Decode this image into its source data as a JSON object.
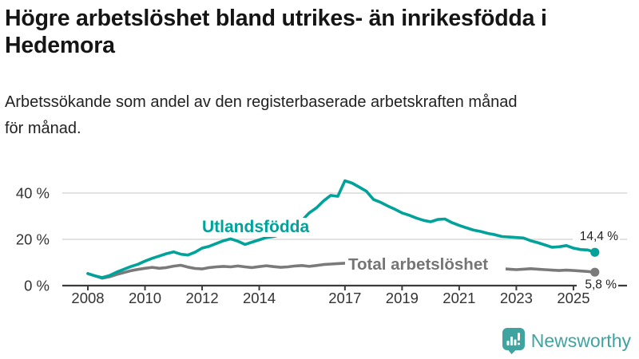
{
  "header": {
    "title": "Högre arbetslöshet bland utrikes- än inrikesfödda i\nHedemora",
    "subtitle": "Arbetssökande som andel av den registerbaserade arbetskraften månad\nför månad."
  },
  "footer": {
    "brand": "Newsworthy",
    "logo_icon": "newsworthy-bar-chart-speech-bubble"
  },
  "colors": {
    "series_utlandsfodda": "#00a29a",
    "series_total": "#7a7a7a",
    "gridline": "#d9d9d9",
    "axis": "#3b3b3b",
    "tick_text": "#333333",
    "end_label_text": "#222222",
    "logo_teal": "#3fa3a0"
  },
  "chart_data": {
    "type": "line",
    "unit": "%",
    "grid": "horizontal",
    "legend_position": "inline-labels",
    "x_ticks": [
      2008,
      2010,
      2012,
      2014,
      2017,
      2019,
      2021,
      2023,
      2025
    ],
    "y_ticks": [
      {
        "value": 0,
        "label": "0 %"
      },
      {
        "value": 20,
        "label": "20 %"
      },
      {
        "value": 40,
        "label": "40 %"
      }
    ],
    "x_range": [
      2007.6,
      2026.1
    ],
    "y_range": [
      0,
      48
    ],
    "x_start": 2008.0,
    "x_step_years": 0.25,
    "series": [
      {
        "name": "Utlandsfödda",
        "color": "#00a29a",
        "end_label": "14,4 %",
        "end_value": 14.4,
        "values": [
          5.2,
          4.2,
          3.5,
          4.3,
          5.8,
          7.0,
          8.2,
          9.2,
          10.6,
          11.8,
          12.8,
          13.8,
          14.6,
          13.6,
          13.2,
          14.4,
          16.2,
          17.0,
          18.2,
          19.4,
          20.2,
          19.2,
          17.8,
          18.8,
          19.8,
          20.8,
          21.2,
          22.0,
          23.4,
          25.4,
          28.2,
          31.4,
          33.6,
          36.6,
          39.0,
          38.6,
          45.3,
          44.3,
          42.6,
          40.8,
          37.2,
          36.0,
          34.4,
          33.0,
          31.4,
          30.4,
          29.2,
          28.2,
          27.6,
          28.6,
          28.8,
          27.2,
          26.0,
          25.0,
          24.0,
          23.4,
          22.6,
          22.0,
          21.2,
          21.0,
          20.8,
          20.6,
          19.4,
          18.6,
          17.6,
          16.6,
          16.8,
          17.3,
          16.2,
          15.6,
          15.4,
          14.4
        ]
      },
      {
        "name": "Total arbetslöshet",
        "color": "#7a7a7a",
        "end_label": "5,8 %",
        "end_value": 5.8,
        "values": [
          5.2,
          4.2,
          3.2,
          3.8,
          4.8,
          5.6,
          6.4,
          7.0,
          7.5,
          7.9,
          7.5,
          7.8,
          8.4,
          8.8,
          8.0,
          7.4,
          7.2,
          7.8,
          8.1,
          8.3,
          8.1,
          8.5,
          8.1,
          7.8,
          8.2,
          8.6,
          8.2,
          7.9,
          8.1,
          8.5,
          8.7,
          8.3,
          8.7,
          9.1,
          9.3,
          9.5,
          9.7,
          9.9,
          9.5,
          9.1,
          8.9,
          9.1,
          8.7,
          8.5,
          8.3,
          8.5,
          8.7,
          8.9,
          9.1,
          9.7,
          9.9,
          9.5,
          9.3,
          8.9,
          8.5,
          8.1,
          7.7,
          7.5,
          7.3,
          7.1,
          6.9,
          7.1,
          7.3,
          7.1,
          6.9,
          6.7,
          6.5,
          6.7,
          6.5,
          6.3,
          6.1,
          5.8
        ]
      }
    ]
  }
}
